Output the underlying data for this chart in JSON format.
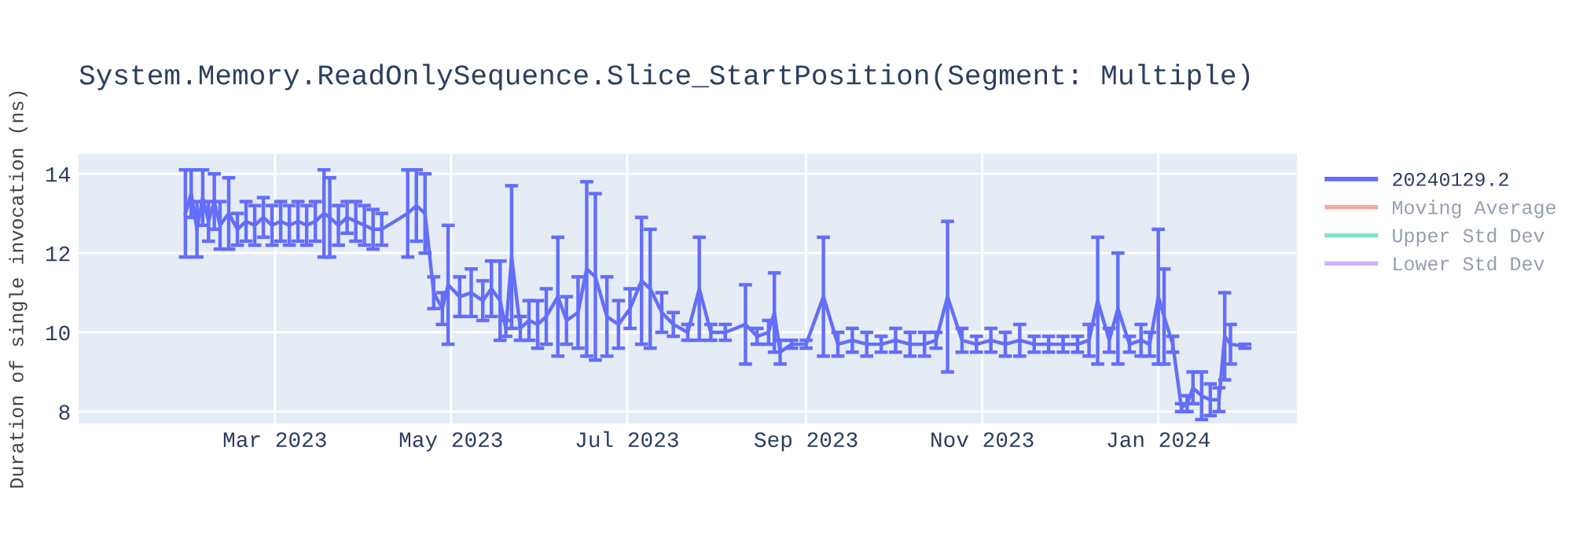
{
  "chart_data": {
    "type": "line",
    "title": "System.Memory.ReadOnlySequence.Slice_StartPosition(Segment: Multiple)",
    "ylabel": "Duration of single invocation (ns)",
    "x": [
      "2023-01-29",
      "2023-01-31",
      "2023-02-02",
      "2023-02-04",
      "2023-02-06",
      "2023-02-08",
      "2023-02-10",
      "2023-02-13",
      "2023-02-16",
      "2023-02-19",
      "2023-02-22",
      "2023-02-25",
      "2023-02-28",
      "2023-03-03",
      "2023-03-06",
      "2023-03-09",
      "2023-03-12",
      "2023-03-15",
      "2023-03-18",
      "2023-03-20",
      "2023-03-23",
      "2023-03-26",
      "2023-03-29",
      "2023-04-01",
      "2023-04-04",
      "2023-04-07",
      "2023-04-16",
      "2023-04-19",
      "2023-04-22",
      "2023-04-25",
      "2023-04-28",
      "2023-04-30",
      "2023-05-04",
      "2023-05-08",
      "2023-05-12",
      "2023-05-15",
      "2023-05-18",
      "2023-05-20",
      "2023-05-22",
      "2023-05-25",
      "2023-05-28",
      "2023-05-31",
      "2023-06-03",
      "2023-06-07",
      "2023-06-10",
      "2023-06-14",
      "2023-06-17",
      "2023-06-20",
      "2023-06-24",
      "2023-06-28",
      "2023-07-02",
      "2023-07-06",
      "2023-07-09",
      "2023-07-13",
      "2023-07-17",
      "2023-07-22",
      "2023-07-26",
      "2023-07-30",
      "2023-08-04",
      "2023-08-11",
      "2023-08-15",
      "2023-08-19",
      "2023-08-21",
      "2023-08-23",
      "2023-08-27",
      "2023-09-01",
      "2023-09-07",
      "2023-09-12",
      "2023-09-17",
      "2023-09-22",
      "2023-09-27",
      "2023-10-02",
      "2023-10-07",
      "2023-10-12",
      "2023-10-16",
      "2023-10-20",
      "2023-10-25",
      "2023-10-30",
      "2023-11-04",
      "2023-11-09",
      "2023-11-14",
      "2023-11-19",
      "2023-11-24",
      "2023-11-29",
      "2023-12-04",
      "2023-12-08",
      "2023-12-11",
      "2023-12-15",
      "2023-12-18",
      "2023-12-22",
      "2023-12-26",
      "2023-12-29",
      "2024-01-01",
      "2024-01-03",
      "2024-01-06",
      "2024-01-09",
      "2024-01-11",
      "2024-01-13",
      "2024-01-16",
      "2024-01-19",
      "2024-01-22",
      "2024-01-24",
      "2024-01-26",
      "2024-01-31"
    ],
    "series": [
      {
        "name": "20240129.2",
        "color": "#636efa",
        "values": [
          13.0,
          13.5,
          12.6,
          13.4,
          12.8,
          13.3,
          12.7,
          13.0,
          12.6,
          12.8,
          12.7,
          12.9,
          12.7,
          12.8,
          12.7,
          12.8,
          12.7,
          12.8,
          13.0,
          12.9,
          12.7,
          12.9,
          12.8,
          12.7,
          12.6,
          12.6,
          13.0,
          13.2,
          13.0,
          11.0,
          10.6,
          11.2,
          10.9,
          11.0,
          10.8,
          11.1,
          10.8,
          10.1,
          11.9,
          10.1,
          10.3,
          10.2,
          10.4,
          10.9,
          10.3,
          10.5,
          11.6,
          11.4,
          10.4,
          10.2,
          10.6,
          11.3,
          11.1,
          10.5,
          10.2,
          10.0,
          11.1,
          10.0,
          10.0,
          10.2,
          9.9,
          10.0,
          10.5,
          9.5,
          9.7,
          9.7,
          10.9,
          9.7,
          9.8,
          9.7,
          9.7,
          9.8,
          9.7,
          9.7,
          9.8,
          10.9,
          9.8,
          9.7,
          9.8,
          9.7,
          9.8,
          9.7,
          9.7,
          9.7,
          9.7,
          9.8,
          10.8,
          9.8,
          10.6,
          9.7,
          9.8,
          9.7,
          10.9,
          10.4,
          9.7,
          8.1,
          8.2,
          8.6,
          8.4,
          8.3,
          8.3,
          9.9,
          9.7,
          9.65
        ],
        "errors": [
          1.1,
          0.6,
          0.7,
          0.7,
          0.5,
          0.7,
          0.6,
          0.9,
          0.4,
          0.5,
          0.5,
          0.5,
          0.5,
          0.5,
          0.5,
          0.5,
          0.5,
          0.5,
          1.1,
          1.0,
          0.5,
          0.4,
          0.5,
          0.5,
          0.5,
          0.4,
          1.1,
          0.9,
          1.0,
          0.4,
          0.4,
          1.5,
          0.5,
          0.6,
          0.5,
          0.7,
          1.0,
          0.2,
          1.8,
          0.3,
          0.5,
          0.6,
          0.7,
          1.5,
          0.6,
          0.9,
          2.2,
          2.1,
          1.0,
          0.6,
          0.5,
          1.6,
          1.5,
          0.5,
          0.3,
          0.2,
          1.3,
          0.2,
          0.2,
          1.0,
          0.2,
          0.3,
          1.0,
          0.3,
          0.1,
          0.1,
          1.5,
          0.3,
          0.3,
          0.3,
          0.2,
          0.3,
          0.3,
          0.3,
          0.2,
          1.9,
          0.3,
          0.2,
          0.3,
          0.3,
          0.4,
          0.2,
          0.2,
          0.2,
          0.2,
          0.4,
          1.6,
          0.3,
          1.4,
          0.2,
          0.4,
          0.3,
          1.7,
          1.2,
          0.2,
          0.1,
          0.2,
          0.4,
          0.6,
          0.4,
          0.3,
          1.1,
          0.5,
          0.05
        ]
      },
      {
        "name": "Moving Average",
        "color": "#ef553b",
        "values": [
          null,
          null,
          null,
          null,
          null,
          null,
          null,
          null,
          null,
          null,
          null,
          null,
          null,
          null,
          null,
          null,
          null,
          null,
          null,
          null,
          null,
          null,
          null,
          null,
          null,
          null,
          null,
          null,
          null,
          null,
          null,
          null,
          null,
          null,
          null,
          null,
          null,
          null,
          null,
          null,
          null,
          null,
          null,
          null,
          null,
          null,
          null,
          null,
          null,
          null,
          null,
          null,
          null,
          null,
          null,
          null,
          null,
          null,
          null,
          null,
          null,
          null,
          null,
          null,
          null,
          null,
          null,
          null,
          null,
          null,
          null,
          null,
          null,
          null,
          null,
          null,
          null,
          null,
          null,
          null,
          null,
          null,
          null,
          null,
          null,
          null,
          null,
          null,
          null,
          null,
          null,
          null,
          null,
          null,
          null,
          null,
          null,
          null,
          null,
          null,
          null,
          null,
          null,
          null
        ]
      },
      {
        "name": "Upper Std Dev",
        "color": "#00cc96",
        "values": [
          null,
          null,
          null,
          null,
          null,
          null,
          null,
          null,
          null,
          null,
          null,
          null,
          null,
          null,
          null,
          null,
          null,
          null,
          null,
          null,
          null,
          null,
          null,
          null,
          null,
          null,
          null,
          null,
          null,
          null,
          null,
          null,
          null,
          null,
          null,
          null,
          null,
          null,
          null,
          null,
          null,
          null,
          null,
          null,
          null,
          null,
          null,
          null,
          null,
          null,
          null,
          null,
          null,
          null,
          null,
          null,
          null,
          null,
          null,
          null,
          null,
          null,
          null,
          null,
          null,
          null,
          null,
          null,
          null,
          null,
          null,
          null,
          null,
          null,
          null,
          null,
          null,
          null,
          null,
          null,
          null,
          null,
          null,
          null,
          null,
          null,
          null,
          null,
          null,
          null,
          null,
          null,
          null,
          null,
          null,
          null,
          null,
          null,
          null,
          null,
          null,
          null,
          null,
          null
        ]
      },
      {
        "name": "Lower Std Dev",
        "color": "#ab63fa",
        "values": [
          null,
          null,
          null,
          null,
          null,
          null,
          null,
          null,
          null,
          null,
          null,
          null,
          null,
          null,
          null,
          null,
          null,
          null,
          null,
          null,
          null,
          null,
          null,
          null,
          null,
          null,
          null,
          null,
          null,
          null,
          null,
          null,
          null,
          null,
          null,
          null,
          null,
          null,
          null,
          null,
          null,
          null,
          null,
          null,
          null,
          null,
          null,
          null,
          null,
          null,
          null,
          null,
          null,
          null,
          null,
          null,
          null,
          null,
          null,
          null,
          null,
          null,
          null,
          null,
          null,
          null,
          null,
          null,
          null,
          null,
          null,
          null,
          null,
          null,
          null,
          null,
          null,
          null,
          null,
          null,
          null,
          null,
          null,
          null,
          null,
          null,
          null,
          null,
          null,
          null,
          null,
          null,
          null,
          null,
          null,
          null,
          null,
          null,
          null,
          null,
          null,
          null,
          null,
          null
        ]
      }
    ],
    "xlim": [
      "2022-12-23",
      "2024-02-18"
    ],
    "xticks": [
      {
        "value": "2023-03-01",
        "label": "Mar 2023"
      },
      {
        "value": "2023-05-01",
        "label": "May 2023"
      },
      {
        "value": "2023-07-01",
        "label": "Jul 2023"
      },
      {
        "value": "2023-09-01",
        "label": "Sep 2023"
      },
      {
        "value": "2023-11-01",
        "label": "Nov 2023"
      },
      {
        "value": "2024-01-01",
        "label": "Jan 2024"
      }
    ],
    "ylim": [
      7.7,
      14.5
    ],
    "yticks": [
      8,
      10,
      12,
      14
    ],
    "grid": true,
    "legend": "top right",
    "marker": "none",
    "line_style": "solid"
  }
}
